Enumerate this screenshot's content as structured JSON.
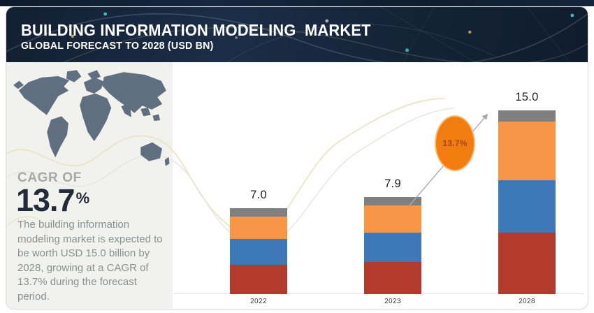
{
  "header": {
    "title": "BUILDING INFORMATION MODELING  MARKET",
    "subtitle": "GLOBAL FORECAST TO 2028 (USD BN)"
  },
  "sidebar": {
    "cagr_label": "CAGR OF",
    "cagr_value": "13.7",
    "cagr_percent_sign": "%",
    "description": "The building information modeling  market is expected to be worth USD 15.0 billion by 2028, growing at a CAGR of 13.7% during the forecast period."
  },
  "growth_callout": {
    "label": "13.7%",
    "fill": "#f17d11"
  },
  "chart_data": {
    "type": "bar",
    "stacked": true,
    "title": "Building Information Modeling Market",
    "xlabel": "",
    "ylabel": "USD BN",
    "legend": false,
    "grid": false,
    "categories": [
      "2022",
      "2023",
      "2028"
    ],
    "totals": [
      7.0,
      7.9,
      15.0
    ],
    "total_labels": [
      "7.0",
      "7.9",
      "15.0"
    ],
    "series": [
      {
        "name": "segment-red",
        "color": "#b23b2e",
        "values": [
          2.4,
          2.6,
          5.0
        ]
      },
      {
        "name": "segment-blue",
        "color": "#3d79b8",
        "values": [
          2.1,
          2.4,
          4.3
        ]
      },
      {
        "name": "segment-orange",
        "color": "#f79646",
        "values": [
          1.8,
          2.2,
          4.8
        ]
      },
      {
        "name": "segment-gray",
        "color": "#7f7f7f",
        "values": [
          0.7,
          0.7,
          0.9
        ]
      }
    ],
    "annotation": {
      "growth_label": "13.7%"
    }
  },
  "colors": {
    "header_navy": "#16243a",
    "panel_gray": "#f1f1ee",
    "accent_orange": "#f17d11",
    "map_slate": "#5a6a7c"
  }
}
